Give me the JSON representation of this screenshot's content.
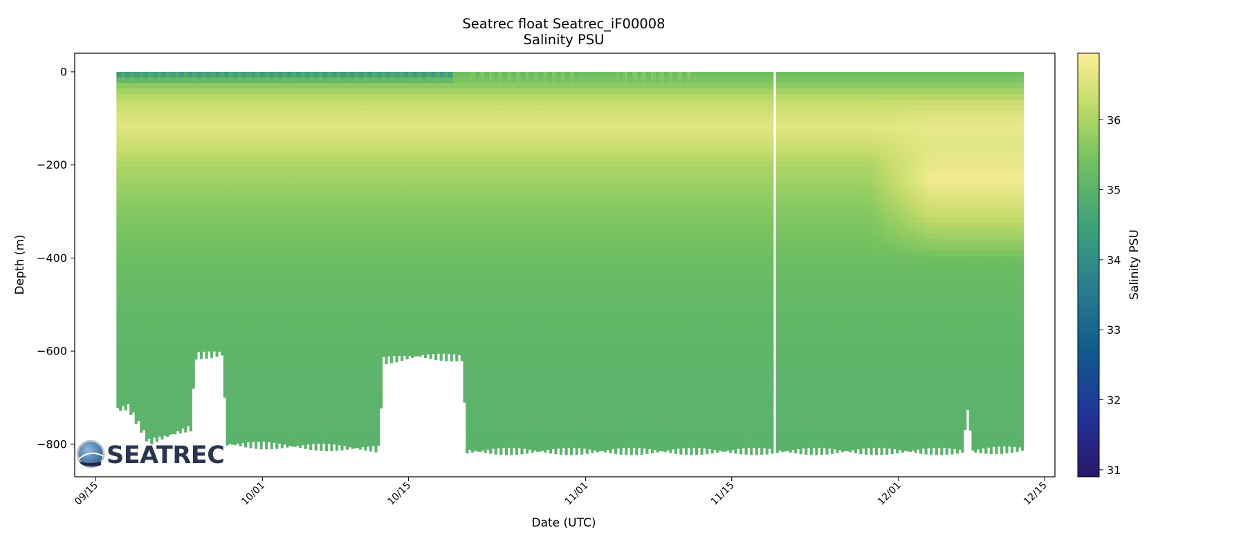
{
  "chart_data": {
    "type": "heatmap",
    "title": "Seatrec float Seatrec_iF00008",
    "subtitle": "Salinity PSU",
    "xlabel": "Date (UTC)",
    "ylabel": "Depth (m)",
    "colorbar_label": "Salinity PSU",
    "colormap": "haline",
    "x_range": [
      "2023-09-13",
      "2023-12-16"
    ],
    "ylim": [
      -870,
      40
    ],
    "clim": [
      30.9,
      36.95
    ],
    "x_ticks": [
      {
        "date": "2023-09-15",
        "label": "09/15"
      },
      {
        "date": "2023-10-01",
        "label": "10/01"
      },
      {
        "date": "2023-10-15",
        "label": "10/15"
      },
      {
        "date": "2023-11-01",
        "label": "11/01"
      },
      {
        "date": "2023-11-15",
        "label": "11/15"
      },
      {
        "date": "2023-12-01",
        "label": "12/01"
      },
      {
        "date": "2023-12-15",
        "label": "12/15"
      }
    ],
    "y_ticks": [
      0,
      -200,
      -400,
      -600,
      -800
    ],
    "y_tick_labels": [
      "0",
      "−200",
      "−400",
      "−600",
      "−800"
    ],
    "colorbar_ticks": [
      31,
      32,
      33,
      34,
      35,
      36
    ],
    "data_start": "2023-09-17",
    "data_end": "2023-12-13",
    "data_gap_date": "2023-11-19",
    "profile_bottom_depth": [
      {
        "date": "2023-09-17",
        "depth": -725
      },
      {
        "date": "2023-09-18",
        "depth": -720
      },
      {
        "date": "2023-09-20",
        "depth": -795
      },
      {
        "date": "2023-09-22",
        "depth": -780
      },
      {
        "date": "2023-09-24",
        "depth": -765
      },
      {
        "date": "2023-09-24.5",
        "depth": -610
      },
      {
        "date": "2023-09-27",
        "depth": -605
      },
      {
        "date": "2023-09-27.5",
        "depth": -800
      },
      {
        "date": "2023-10-12",
        "depth": -810
      },
      {
        "date": "2023-10-12.5",
        "depth": -620
      },
      {
        "date": "2023-10-16",
        "depth": -610
      },
      {
        "date": "2023-10-20",
        "depth": -615
      },
      {
        "date": "2023-10-20.5",
        "depth": -815
      },
      {
        "date": "2023-12-07",
        "depth": -815
      },
      {
        "date": "2023-12-07.5",
        "depth": -725
      },
      {
        "date": "2023-12-08",
        "depth": -815
      },
      {
        "date": "2023-12-13",
        "depth": -810
      }
    ],
    "salinity_profile": {
      "depths": [
        0,
        -25,
        -60,
        -120,
        -200,
        -300,
        -400,
        -500,
        -600,
        -800
      ],
      "values": [
        35.3,
        35.6,
        36.2,
        36.6,
        36.0,
        35.6,
        35.3,
        35.15,
        35.05,
        35.0
      ]
    },
    "surface_fresh_patches": [
      {
        "start": "2023-09-17",
        "end": "2023-10-19",
        "value": 34.3
      },
      {
        "start": "2023-10-21",
        "end": "2023-10-31",
        "value": 35.4
      },
      {
        "start": "2023-11-04",
        "end": "2023-11-11",
        "value": 35.5
      }
    ],
    "late_warm_salty_tongue": {
      "start": "2023-11-28",
      "end": "2023-12-13",
      "depth_min": -120,
      "depth_max": -330,
      "value": 36.8
    }
  },
  "logo": {
    "text": "SEATREC"
  }
}
